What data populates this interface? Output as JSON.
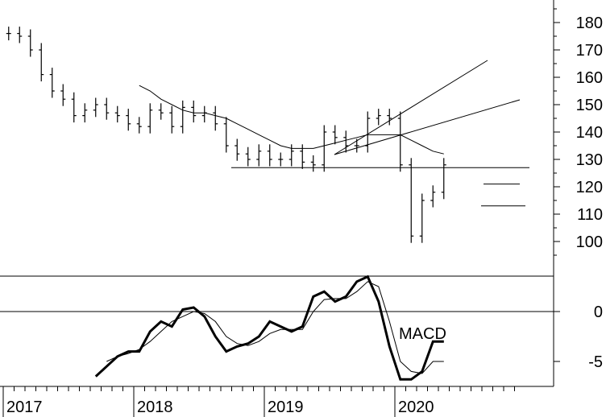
{
  "chart_data": [
    {
      "type": "line",
      "subtype": "ohlc-bar",
      "title": "",
      "x_labels": [
        "2017",
        "2018",
        "2019",
        "2020"
      ],
      "x": [
        "2017-01",
        "2017-02",
        "2017-03",
        "2017-04",
        "2017-05",
        "2017-06",
        "2017-07",
        "2017-08",
        "2017-09",
        "2017-10",
        "2017-11",
        "2017-12",
        "2018-01",
        "2018-02",
        "2018-03",
        "2018-04",
        "2018-05",
        "2018-06",
        "2018-07",
        "2018-08",
        "2018-09",
        "2018-10",
        "2018-11",
        "2018-12",
        "2019-01",
        "2019-02",
        "2019-03",
        "2019-04",
        "2019-05",
        "2019-06",
        "2019-07",
        "2019-08",
        "2019-09",
        "2019-10",
        "2019-11",
        "2019-12",
        "2020-01",
        "2020-02",
        "2020-03",
        "2020-04",
        "2020-05"
      ],
      "series": [
        {
          "values": [
            176,
            175,
            170,
            161,
            155,
            152,
            146,
            148,
            150,
            147,
            146,
            143,
            142,
            148,
            147,
            142,
            149,
            146,
            147,
            143,
            135,
            132,
            130,
            133,
            130,
            130,
            133,
            129,
            128,
            140,
            138,
            135,
            135,
            145,
            146,
            145,
            128,
            102,
            115,
            118,
            128
          ]
        },
        {
          "values": [
            null,
            null,
            null,
            null,
            null,
            null,
            null,
            null,
            null,
            null,
            null,
            null,
            157,
            155,
            152,
            150,
            148,
            147,
            147,
            146,
            145,
            143,
            141,
            139,
            137,
            135,
            134,
            134,
            134,
            135,
            136,
            137,
            138,
            139,
            139,
            139,
            139,
            137,
            135,
            133,
            132
          ]
        }
      ],
      "y_ticks": [
        100,
        110,
        120,
        130,
        140,
        150,
        160,
        170,
        180
      ],
      "ylim": [
        89,
        184
      ],
      "grid": false
    },
    {
      "type": "line",
      "annotation": "MACD",
      "x": [
        "2017-09",
        "2017-10",
        "2017-11",
        "2017-12",
        "2018-01",
        "2018-02",
        "2018-03",
        "2018-04",
        "2018-05",
        "2018-06",
        "2018-07",
        "2018-08",
        "2018-09",
        "2018-10",
        "2018-11",
        "2018-12",
        "2019-01",
        "2019-02",
        "2019-03",
        "2019-04",
        "2019-05",
        "2019-06",
        "2019-07",
        "2019-08",
        "2019-09",
        "2019-10",
        "2019-11",
        "2019-12",
        "2020-01",
        "2020-02",
        "2020-03",
        "2020-04",
        "2020-05"
      ],
      "series": [
        {
          "values": [
            -6.5,
            -5.5,
            -4.5,
            -4.0,
            -4.0,
            -2.0,
            -1.0,
            -1.5,
            0.2,
            0.4,
            -0.5,
            -2.5,
            -4.0,
            -3.5,
            -3.2,
            -2.5,
            -1.0,
            -1.5,
            -2.0,
            -1.5,
            1.5,
            2.0,
            1.0,
            1.5,
            3.0,
            3.5,
            1.0,
            -3.5,
            -6.8,
            -6.8,
            -6.0,
            -3.0,
            -3.0
          ],
          "style": "thick"
        },
        {
          "values": [
            null,
            -5.0,
            -4.5,
            -4.2,
            -3.8,
            -3.0,
            -2.0,
            -1.0,
            -0.5,
            0.0,
            -0.2,
            -1.0,
            -2.5,
            -3.2,
            -3.4,
            -3.0,
            -2.2,
            -1.8,
            -1.8,
            -1.8,
            0.0,
            1.2,
            1.3,
            1.3,
            2.0,
            3.0,
            2.5,
            -1.0,
            -5.0,
            -6.0,
            -6.2,
            -5.0,
            -5.0
          ],
          "style": "thin"
        }
      ],
      "y_ticks": [
        0,
        -5
      ],
      "ylim": [
        -8,
        4.5
      ],
      "grid": false
    }
  ]
}
